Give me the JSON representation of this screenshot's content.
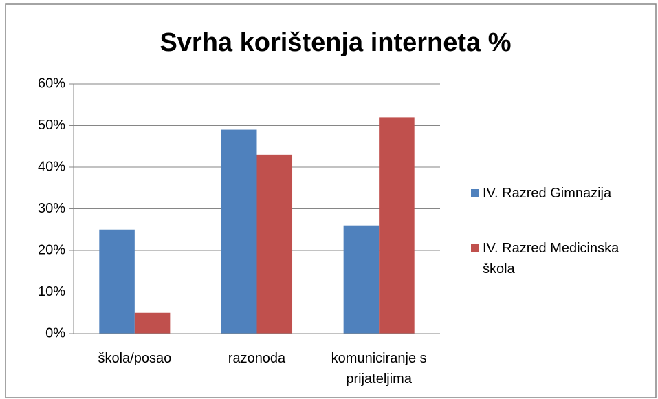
{
  "chart_data": {
    "type": "bar",
    "title": "Svrha korištenja interneta %",
    "categories": [
      "škola/posao",
      "razonoda",
      "komuniciranje s prijateljima"
    ],
    "series": [
      {
        "name": "IV. Razred Gimnazija",
        "color": "#4f81bd",
        "values": [
          25,
          49,
          26
        ]
      },
      {
        "name": "IV. Razred Medicinska škola",
        "color": "#c0504d",
        "values": [
          5,
          43,
          52
        ]
      }
    ],
    "ylim": [
      0,
      60
    ],
    "yticks": [
      {
        "value": 0,
        "label": "0%"
      },
      {
        "value": 10,
        "label": "10%"
      },
      {
        "value": 20,
        "label": "20%"
      },
      {
        "value": 30,
        "label": "30%"
      },
      {
        "value": 40,
        "label": "40%"
      },
      {
        "value": 50,
        "label": "50%"
      },
      {
        "value": 60,
        "label": "60%"
      }
    ],
    "grid": true,
    "legend": "right"
  }
}
